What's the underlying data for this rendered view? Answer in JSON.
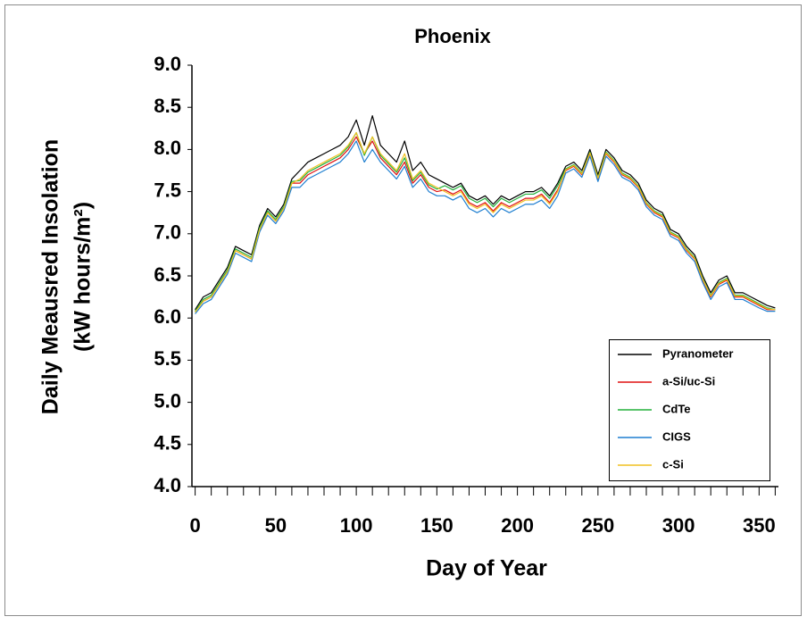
{
  "chart_data": {
    "type": "line",
    "title": "Phoenix",
    "x_label": "Day of Year",
    "y_label": [
      "Daily Meausred Insolation",
      "(kW hours/m²)"
    ],
    "x": [
      0,
      5,
      10,
      15,
      20,
      25,
      30,
      35,
      40,
      45,
      50,
      55,
      60,
      65,
      70,
      75,
      80,
      85,
      90,
      95,
      100,
      105,
      110,
      115,
      120,
      125,
      130,
      135,
      140,
      145,
      150,
      155,
      160,
      165,
      170,
      175,
      180,
      185,
      190,
      195,
      200,
      205,
      210,
      215,
      220,
      225,
      230,
      235,
      240,
      245,
      250,
      255,
      260,
      265,
      270,
      275,
      280,
      285,
      290,
      295,
      300,
      305,
      310,
      315,
      320,
      325,
      330,
      335,
      340,
      345,
      350,
      355,
      360
    ],
    "xlim": [
      -2,
      362
    ],
    "xticks": [
      0,
      50,
      100,
      150,
      200,
      250,
      300,
      350
    ],
    "x_minor_ticks": [
      10,
      20,
      30,
      40,
      60,
      70,
      80,
      90,
      110,
      120,
      130,
      140,
      160,
      170,
      180,
      190,
      210,
      220,
      230,
      240,
      260,
      270,
      280,
      290,
      310,
      320,
      330,
      340,
      360
    ],
    "ylim": [
      4,
      9
    ],
    "yticks": [
      {
        "value": 4,
        "label": "4.0"
      },
      4.5,
      {
        "value": 5,
        "label": "5.0"
      },
      5.5,
      {
        "value": 6,
        "label": "6.0"
      },
      6.5,
      {
        "value": 7,
        "label": "7.0"
      },
      7.5,
      {
        "value": 8,
        "label": "8.0"
      },
      8.5,
      {
        "value": 9,
        "label": "9.0"
      }
    ],
    "grid": false,
    "legend": "lower right",
    "series": [
      {
        "name": "Pyranometer",
        "color": "#000000",
        "values": [
          6.1,
          6.25,
          6.3,
          6.45,
          6.6,
          6.85,
          6.8,
          6.75,
          7.1,
          7.3,
          7.2,
          7.35,
          7.65,
          7.75,
          7.85,
          7.9,
          7.95,
          8.0,
          8.05,
          8.15,
          8.35,
          8.05,
          8.4,
          8.05,
          7.95,
          7.85,
          8.1,
          7.75,
          7.85,
          7.7,
          7.65,
          7.6,
          7.55,
          7.6,
          7.45,
          7.4,
          7.45,
          7.35,
          7.45,
          7.4,
          7.45,
          7.5,
          7.5,
          7.55,
          7.45,
          7.6,
          7.8,
          7.85,
          7.75,
          8.0,
          7.7,
          8.0,
          7.9,
          7.75,
          7.7,
          7.6,
          7.4,
          7.3,
          7.25,
          7.05,
          7.0,
          6.85,
          6.75,
          6.5,
          6.3,
          6.45,
          6.5,
          6.3,
          6.3,
          6.25,
          6.2,
          6.15,
          6.12
        ]
      },
      {
        "name": "a-Si/uc-Si",
        "color": "#e01010",
        "values": [
          6.08,
          6.2,
          6.25,
          6.4,
          6.55,
          6.8,
          6.75,
          6.7,
          7.05,
          7.25,
          7.15,
          7.3,
          7.6,
          7.6,
          7.7,
          7.75,
          7.8,
          7.85,
          7.9,
          8.0,
          8.15,
          7.95,
          8.1,
          7.9,
          7.8,
          7.7,
          7.85,
          7.6,
          7.7,
          7.55,
          7.5,
          7.52,
          7.47,
          7.52,
          7.37,
          7.32,
          7.37,
          7.27,
          7.37,
          7.32,
          7.37,
          7.42,
          7.42,
          7.47,
          7.37,
          7.52,
          7.75,
          7.8,
          7.7,
          7.95,
          7.65,
          7.95,
          7.85,
          7.7,
          7.65,
          7.55,
          7.35,
          7.25,
          7.2,
          7.0,
          6.95,
          6.8,
          6.7,
          6.45,
          6.25,
          6.4,
          6.45,
          6.25,
          6.25,
          6.2,
          6.15,
          6.1,
          6.1
        ]
      },
      {
        "name": "CdTe",
        "color": "#22b03a",
        "values": [
          6.08,
          6.22,
          6.27,
          6.42,
          6.57,
          6.82,
          6.77,
          6.72,
          7.07,
          7.27,
          7.17,
          7.32,
          7.62,
          7.63,
          7.73,
          7.78,
          7.83,
          7.88,
          7.93,
          8.03,
          8.2,
          7.93,
          8.15,
          7.93,
          7.83,
          7.73,
          7.9,
          7.63,
          7.73,
          7.58,
          7.53,
          7.57,
          7.52,
          7.57,
          7.42,
          7.37,
          7.42,
          7.32,
          7.42,
          7.37,
          7.42,
          7.47,
          7.47,
          7.52,
          7.42,
          7.57,
          7.77,
          7.82,
          7.72,
          7.97,
          7.67,
          7.97,
          7.87,
          7.72,
          7.67,
          7.57,
          7.37,
          7.27,
          7.22,
          7.02,
          6.97,
          6.82,
          6.72,
          6.47,
          6.27,
          6.42,
          6.47,
          6.27,
          6.27,
          6.22,
          6.17,
          6.12,
          6.1
        ]
      },
      {
        "name": "CIGS",
        "color": "#1f7fd0",
        "values": [
          6.05,
          6.17,
          6.22,
          6.37,
          6.52,
          6.77,
          6.72,
          6.67,
          7.02,
          7.22,
          7.12,
          7.27,
          7.55,
          7.55,
          7.65,
          7.7,
          7.75,
          7.8,
          7.85,
          7.95,
          8.1,
          7.85,
          8.0,
          7.85,
          7.75,
          7.65,
          7.8,
          7.55,
          7.65,
          7.5,
          7.45,
          7.45,
          7.4,
          7.45,
          7.3,
          7.25,
          7.3,
          7.2,
          7.3,
          7.25,
          7.3,
          7.35,
          7.35,
          7.4,
          7.3,
          7.45,
          7.72,
          7.77,
          7.67,
          7.92,
          7.62,
          7.92,
          7.82,
          7.67,
          7.62,
          7.52,
          7.32,
          7.22,
          7.17,
          6.97,
          6.92,
          6.77,
          6.67,
          6.42,
          6.22,
          6.37,
          6.42,
          6.22,
          6.22,
          6.17,
          6.12,
          6.08,
          6.08
        ]
      },
      {
        "name": "c-Si",
        "color": "#f0c020",
        "values": [
          6.07,
          6.2,
          6.25,
          6.4,
          6.55,
          6.8,
          6.75,
          6.7,
          7.05,
          7.25,
          7.15,
          7.3,
          7.6,
          7.65,
          7.75,
          7.8,
          7.85,
          7.9,
          7.95,
          8.05,
          8.2,
          7.95,
          8.15,
          7.95,
          7.85,
          7.75,
          7.95,
          7.65,
          7.75,
          7.6,
          7.55,
          7.5,
          7.45,
          7.5,
          7.35,
          7.3,
          7.35,
          7.25,
          7.35,
          7.3,
          7.35,
          7.4,
          7.4,
          7.45,
          7.35,
          7.5,
          7.76,
          7.81,
          7.71,
          7.96,
          7.66,
          7.96,
          7.86,
          7.71,
          7.66,
          7.56,
          7.36,
          7.26,
          7.21,
          7.01,
          6.96,
          6.81,
          6.71,
          6.46,
          6.26,
          6.41,
          6.46,
          6.26,
          6.26,
          6.21,
          6.16,
          6.11,
          6.1
        ]
      }
    ]
  }
}
